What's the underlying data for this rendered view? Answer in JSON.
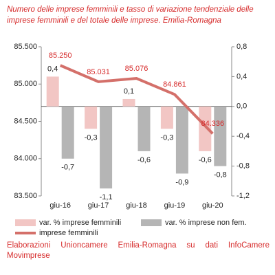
{
  "chart_data": {
    "type": "bar",
    "title": "Numero delle imprese femminili e tasso di variazione tendenziale delle imprese femminili e del totale delle imprese. Emilia-Romagna",
    "footer": "Elaborazioni Unioncamere Emilia-Romagna su dati InfoCamere Movimprese",
    "categories": [
      "giu-16",
      "giu-17",
      "giu-18",
      "giu-19",
      "giu-20"
    ],
    "ylim": [
      83500,
      85500
    ],
    "yticks": [
      {
        "value": 83500,
        "label": "83.500"
      },
      {
        "value": 84000,
        "label": "84.000"
      },
      {
        "value": 84500,
        "label": "84.500"
      },
      {
        "value": 85000,
        "label": "85.000"
      },
      {
        "value": 85500,
        "label": "85.500"
      }
    ],
    "y2lim": [
      -1.2,
      0.8
    ],
    "y2ticks": [
      {
        "value": 0.8,
        "label": "0,8"
      },
      {
        "value": 0.4,
        "label": "0,4"
      },
      {
        "value": 0,
        "label": "0,0"
      },
      {
        "value": -0.4,
        "label": "-0,4"
      },
      {
        "value": -0.8,
        "label": "-0,8"
      },
      {
        "value": -1.2,
        "label": "-1,2"
      }
    ],
    "series": [
      {
        "name": "var. % imprese femminili",
        "type": "bar",
        "axis": "y2",
        "color": "#f2c6c4",
        "values": [
          0.4,
          -0.3,
          0.1,
          -0.3,
          -0.6
        ],
        "value_labels": [
          "0,4",
          "-0,3",
          "0,1",
          "-0,3",
          "-0,6"
        ]
      },
      {
        "name": "var. % imprese non fem.",
        "type": "bar",
        "axis": "y2",
        "color": "#b5b5b5",
        "values": [
          -0.7,
          -1.1,
          -0.6,
          -0.9,
          -0.8
        ],
        "value_labels": [
          "-0,7",
          "-1,1",
          "-0,6",
          "-0,9",
          "-0,8"
        ]
      },
      {
        "name": "imprese femminili",
        "type": "line",
        "axis": "y",
        "color": "#d4706a",
        "values": [
          85250,
          85031,
          85076,
          84861,
          84336
        ],
        "value_labels": [
          "85.250",
          "85.031",
          "85.076",
          "84.861",
          "84.336"
        ]
      }
    ]
  }
}
